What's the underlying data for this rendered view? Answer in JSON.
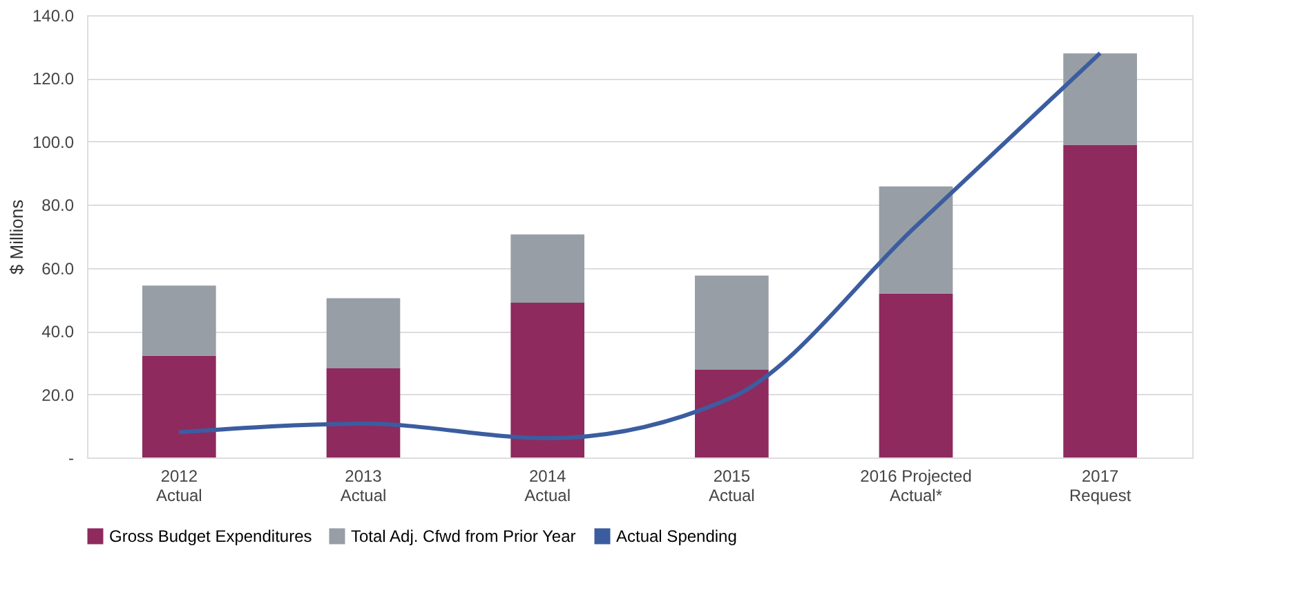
{
  "chart_data": {
    "type": "bar",
    "stacked": true,
    "ylabel": "$ Millions",
    "categories": [
      "2012\nActual",
      "2013\nActual",
      "2014\nActual",
      "2015\nActual",
      "2016 Projected\nActual*",
      "2017\nRequest"
    ],
    "series": [
      {
        "name": "Gross Budget Expenditures",
        "color": "#8e2a5e",
        "values": [
          32.2,
          28.2,
          49.0,
          27.8,
          51.9,
          99.0
        ]
      },
      {
        "name": "Total Adj. Cfwd from Prior Year",
        "color": "#979ea5",
        "values": [
          22.2,
          22.2,
          21.6,
          29.8,
          33.9,
          28.9
        ]
      },
      {
        "name": "Actual Spending",
        "type": "line",
        "color": "#3b5da0",
        "values": [
          8.0,
          10.7,
          6.1,
          19.0,
          73.2,
          128.0
        ]
      }
    ],
    "ylim": [
      0,
      140
    ],
    "yticks": [
      {
        "value": 0,
        "label": "-"
      },
      {
        "value": 20,
        "label": "20.0"
      },
      {
        "value": 40,
        "label": "40.0"
      },
      {
        "value": 60,
        "label": "60.0"
      },
      {
        "value": 80,
        "label": "80.0"
      },
      {
        "value": 100,
        "label": "100.0"
      },
      {
        "value": 120,
        "label": "120.0"
      },
      {
        "value": 140,
        "label": "140.0"
      }
    ],
    "grid": "y",
    "legend": "bottom"
  }
}
